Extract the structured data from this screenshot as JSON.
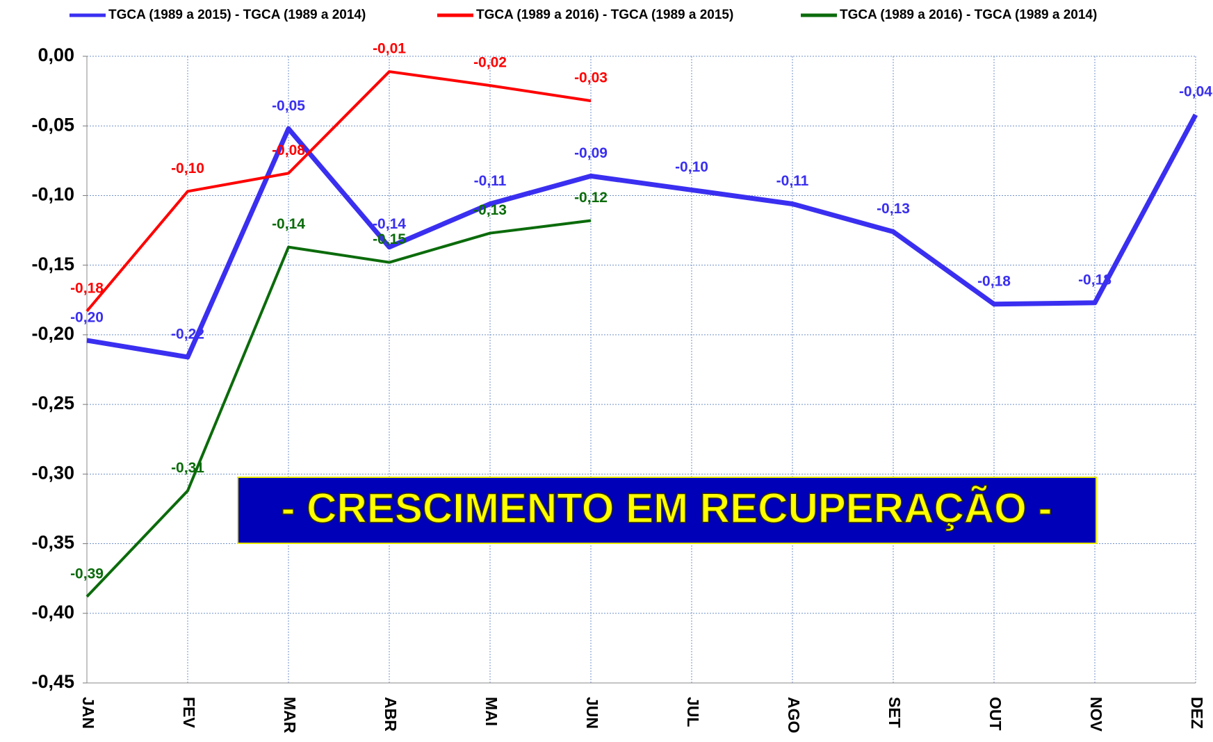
{
  "chart_data": {
    "type": "line",
    "categories": [
      "JAN",
      "FEV",
      "MAR",
      "ABR",
      "MAI",
      "JUN",
      "JUL",
      "AGO",
      "SET",
      "OUT",
      "NOV",
      "DEZ"
    ],
    "series": [
      {
        "name": "TGCA (1989 a 2015) - TGCA (1989 a 2014)",
        "color": "#3a2ff0",
        "values": [
          -0.204,
          -0.216,
          -0.052,
          -0.137,
          -0.106,
          -0.086,
          -0.096,
          -0.106,
          -0.126,
          -0.178,
          -0.177,
          -0.042
        ],
        "value_labels": [
          "-0,20",
          "-0,22",
          "-0,05",
          "-0,14",
          "-0,11",
          "-0,09",
          "-0,10",
          "-0,11",
          "-0,13",
          "-0,18",
          "-0,18",
          "-0,04"
        ]
      },
      {
        "name": "TGCA (1989 a 2016) - TGCA (1989 a 2015)",
        "color": "#ff0000",
        "values": [
          -0.183,
          -0.097,
          -0.084,
          -0.011,
          -0.021,
          -0.032,
          null,
          null,
          null,
          null,
          null,
          null
        ],
        "value_labels": [
          "-0,18",
          "-0,10",
          "-0,08",
          "-0,01",
          "-0,02",
          "-0,03",
          null,
          null,
          null,
          null,
          null,
          null
        ]
      },
      {
        "name": "TGCA (1989 a 2016) - TGCA (1989 a 2014)",
        "color": "#0b6b0b",
        "values": [
          -0.388,
          -0.312,
          -0.137,
          -0.148,
          -0.127,
          -0.118,
          null,
          null,
          null,
          null,
          null,
          null
        ],
        "value_labels": [
          "-0,39",
          "-0,31",
          "-0,14",
          "-0,15",
          "-0,13",
          "-0,12",
          null,
          null,
          null,
          null,
          null,
          null
        ]
      }
    ],
    "ylim": [
      -0.45,
      0
    ],
    "yticks": [
      {
        "value": -0.45,
        "label": "-0,45"
      },
      {
        "value": -0.4,
        "label": "-0,40"
      },
      {
        "value": -0.35,
        "label": "-0,35"
      },
      {
        "value": -0.3,
        "label": "-0,30"
      },
      {
        "value": -0.25,
        "label": "-0,25"
      },
      {
        "value": -0.2,
        "label": "-0,20"
      },
      {
        "value": -0.15,
        "label": "-0,15"
      },
      {
        "value": -0.1,
        "label": "-0,10"
      },
      {
        "value": -0.05,
        "label": "-0,05"
      },
      {
        "value": 0,
        "label": "0,00"
      }
    ],
    "grid": true,
    "legend": "top",
    "annotation": "- CRESCIMENTO EM RECUPERAÇÃO -"
  }
}
